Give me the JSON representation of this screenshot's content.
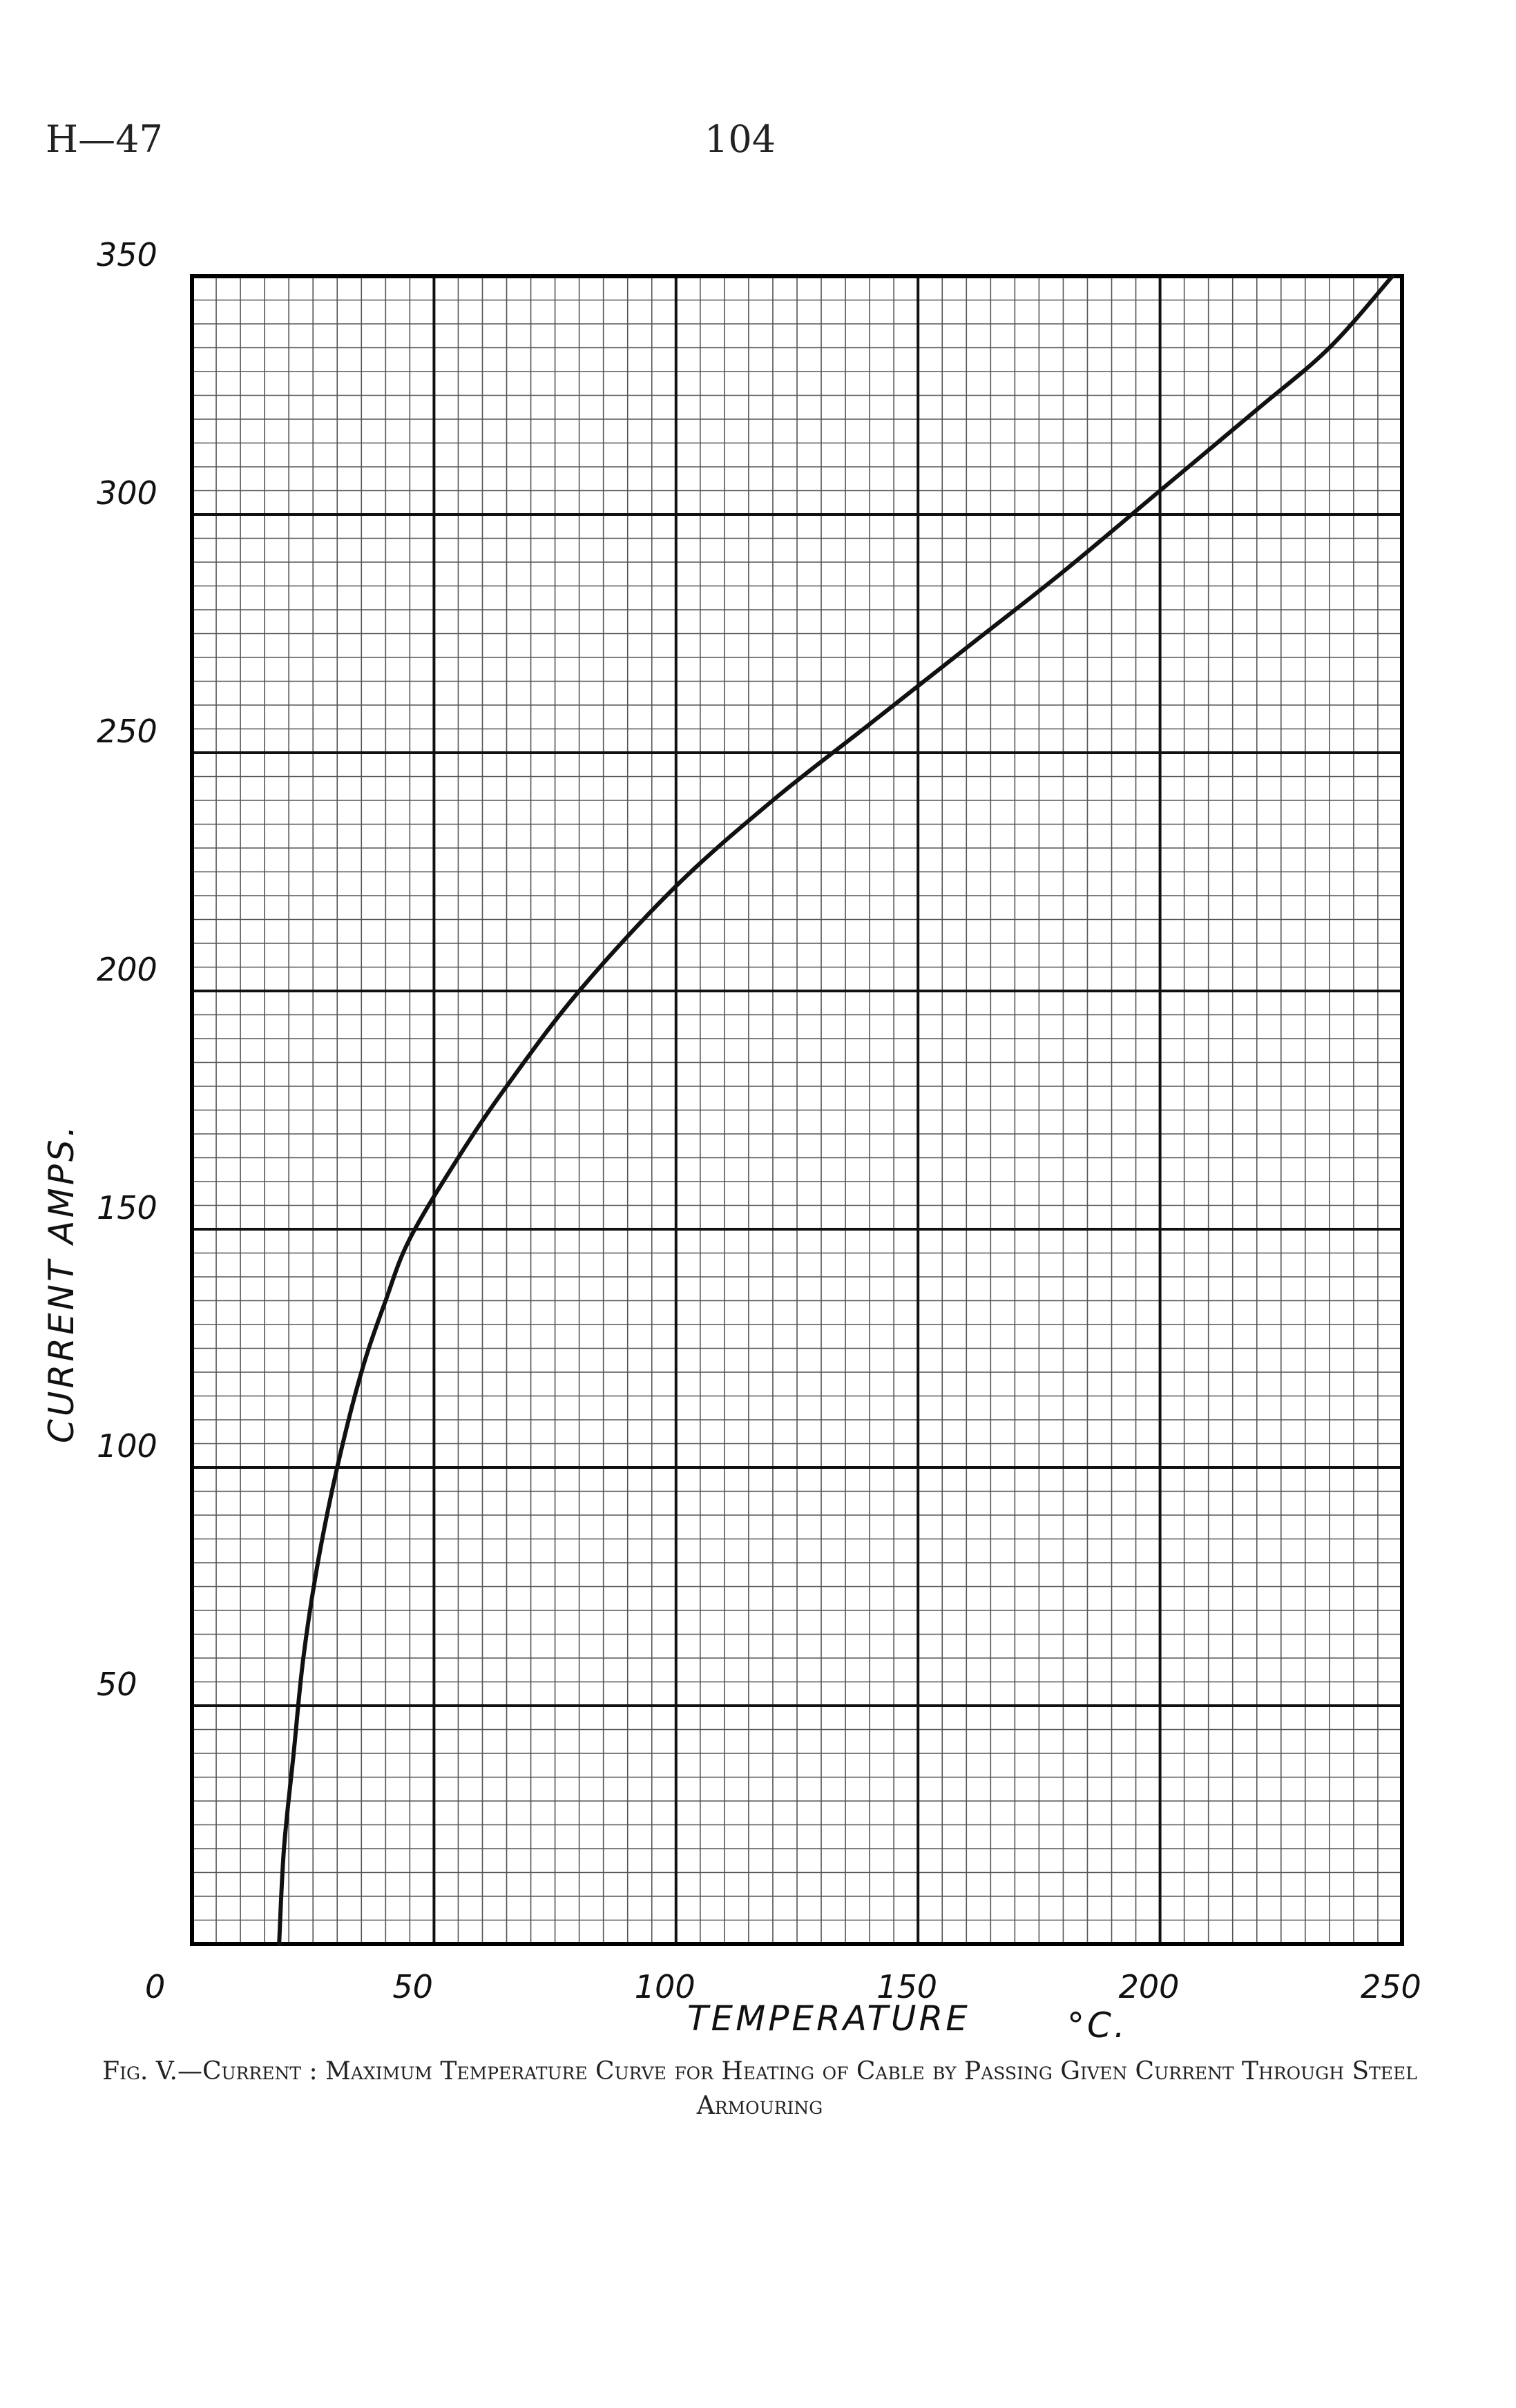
{
  "page": {
    "header_left": "H—47",
    "page_number": "104"
  },
  "caption": "Fig. V.—Current : Maximum Temperature Curve for Heating of Cable by Passing Given Current Through Steel Armouring",
  "chart_data": {
    "type": "line",
    "title": "",
    "xlabel": "TEMPERATURE",
    "xlabel_unit": "°C.",
    "ylabel": "CURRENT   AMPS.",
    "xlim": [
      0,
      250
    ],
    "ylim": [
      0,
      350
    ],
    "x_ticks": [
      "0",
      "50",
      "100",
      "150",
      "200",
      "250"
    ],
    "y_ticks": [
      "50",
      "100",
      "150",
      "200",
      "250",
      "300",
      "350"
    ],
    "grid": true,
    "grid_minor_step_x": 5,
    "grid_minor_step_y": 5,
    "series": [
      {
        "name": "",
        "color": "#111111",
        "points": [
          [
            18,
            0
          ],
          [
            19,
            20
          ],
          [
            21,
            40
          ],
          [
            23,
            60
          ],
          [
            26,
            80
          ],
          [
            30,
            100
          ],
          [
            35,
            120
          ],
          [
            40,
            135
          ],
          [
            45,
            148
          ],
          [
            55,
            165
          ],
          [
            65,
            180
          ],
          [
            80,
            200
          ],
          [
            100,
            222
          ],
          [
            120,
            240
          ],
          [
            140,
            256
          ],
          [
            160,
            272
          ],
          [
            180,
            288
          ],
          [
            200,
            305
          ],
          [
            220,
            322
          ],
          [
            235,
            335
          ],
          [
            248,
            350
          ]
        ]
      }
    ]
  }
}
